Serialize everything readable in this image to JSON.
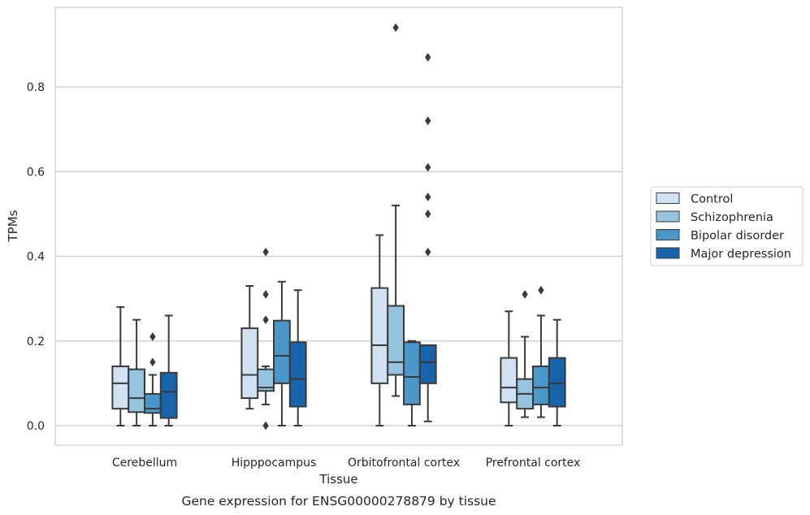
{
  "chart_data": {
    "type": "box",
    "title": "",
    "caption": "Gene expression for ENSG00000278879 by tissue",
    "xlabel": "Tissue",
    "ylabel": "TPMs",
    "ylim": [
      -0.045,
      0.99
    ],
    "yticks": [
      0.0,
      0.2,
      0.4,
      0.6,
      0.8
    ],
    "ytick_labels": [
      "0.0",
      "0.2",
      "0.4",
      "0.6",
      "0.8"
    ],
    "grid": "horizontal",
    "legend_position": "right",
    "categories": [
      "Cerebellum",
      "Hipppocampus",
      "Orbitofrontal cortex",
      "Prefrontal cortex"
    ],
    "series": [
      {
        "name": "Control",
        "color": "#d0e1f2",
        "boxes": [
          {
            "whislo": 0.0,
            "q1": 0.04,
            "med": 0.1,
            "q3": 0.14,
            "whishi": 0.28,
            "fliers": []
          },
          {
            "whislo": 0.04,
            "q1": 0.065,
            "med": 0.12,
            "q3": 0.23,
            "whishi": 0.33,
            "fliers": []
          },
          {
            "whislo": 0.0,
            "q1": 0.1,
            "med": 0.19,
            "q3": 0.325,
            "whishi": 0.45,
            "fliers": []
          },
          {
            "whislo": 0.0,
            "q1": 0.055,
            "med": 0.09,
            "q3": 0.16,
            "whishi": 0.27,
            "fliers": []
          }
        ]
      },
      {
        "name": "Schizophrenia",
        "color": "#94c4df",
        "boxes": [
          {
            "whislo": 0.0,
            "q1": 0.032,
            "med": 0.065,
            "q3": 0.133,
            "whishi": 0.25,
            "fliers": []
          },
          {
            "whislo": 0.05,
            "q1": 0.082,
            "med": 0.09,
            "q3": 0.133,
            "whishi": 0.14,
            "fliers": [
              0.41,
              0.31,
              0.25,
              0.0
            ]
          },
          {
            "whislo": 0.07,
            "q1": 0.12,
            "med": 0.15,
            "q3": 0.283,
            "whishi": 0.52,
            "fliers": [
              0.94
            ]
          },
          {
            "whislo": 0.02,
            "q1": 0.04,
            "med": 0.075,
            "q3": 0.11,
            "whishi": 0.21,
            "fliers": [
              0.31
            ]
          }
        ]
      },
      {
        "name": "Bipolar disorder",
        "color": "#4a98c9",
        "boxes": [
          {
            "whislo": 0.0,
            "q1": 0.03,
            "med": 0.04,
            "q3": 0.075,
            "whishi": 0.12,
            "fliers": [
              0.21,
              0.15
            ]
          },
          {
            "whislo": 0.0,
            "q1": 0.1,
            "med": 0.165,
            "q3": 0.248,
            "whishi": 0.34,
            "fliers": []
          },
          {
            "whislo": 0.0,
            "q1": 0.05,
            "med": 0.115,
            "q3": 0.197,
            "whishi": 0.2,
            "fliers": []
          },
          {
            "whislo": 0.02,
            "q1": 0.05,
            "med": 0.09,
            "q3": 0.14,
            "whishi": 0.26,
            "fliers": [
              0.32
            ]
          }
        ]
      },
      {
        "name": "Major depression",
        "color": "#1764ab",
        "boxes": [
          {
            "whislo": 0.0,
            "q1": 0.018,
            "med": 0.08,
            "q3": 0.125,
            "whishi": 0.26,
            "fliers": []
          },
          {
            "whislo": 0.0,
            "q1": 0.045,
            "med": 0.11,
            "q3": 0.197,
            "whishi": 0.32,
            "fliers": []
          },
          {
            "whislo": 0.01,
            "q1": 0.1,
            "med": 0.15,
            "q3": 0.19,
            "whishi": 0.19,
            "fliers": [
              0.87,
              0.72,
              0.61,
              0.54,
              0.5,
              0.41
            ]
          },
          {
            "whislo": 0.0,
            "q1": 0.045,
            "med": 0.1,
            "q3": 0.16,
            "whishi": 0.25,
            "fliers": []
          }
        ]
      }
    ]
  },
  "colors": {
    "box_edge": "#3a3a3a",
    "grid": "#cccccc",
    "frame": "#cccccc",
    "text": "#262626"
  }
}
